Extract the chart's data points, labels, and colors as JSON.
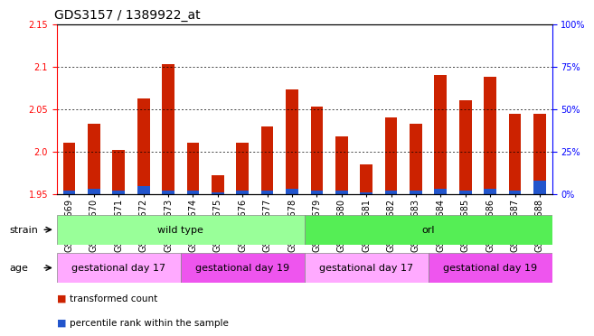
{
  "title": "GDS3157 / 1389922_at",
  "samples": [
    "GSM187669",
    "GSM187670",
    "GSM187671",
    "GSM187672",
    "GSM187673",
    "GSM187674",
    "GSM187675",
    "GSM187676",
    "GSM187677",
    "GSM187678",
    "GSM187679",
    "GSM187680",
    "GSM187681",
    "GSM187682",
    "GSM187683",
    "GSM187684",
    "GSM187685",
    "GSM187686",
    "GSM187687",
    "GSM187688"
  ],
  "red_values": [
    2.01,
    2.033,
    2.002,
    2.063,
    2.103,
    2.01,
    1.972,
    2.01,
    2.03,
    2.073,
    2.053,
    2.018,
    1.985,
    2.04,
    2.033,
    2.09,
    2.06,
    2.088,
    2.044,
    2.044
  ],
  "blue_values": [
    2,
    3,
    2,
    5,
    2,
    2,
    1,
    2,
    2,
    3,
    2,
    2,
    1,
    2,
    2,
    3,
    2,
    3,
    2,
    8
  ],
  "ymin": 1.95,
  "ymax": 2.15,
  "yticks": [
    1.95,
    2.0,
    2.05,
    2.1,
    2.15
  ],
  "right_yticks": [
    0,
    25,
    50,
    75,
    100
  ],
  "right_ylabels": [
    "0%",
    "25%",
    "50%",
    "75%",
    "100%"
  ],
  "bar_color_red": "#CC2200",
  "bar_color_blue": "#2255CC",
  "bar_width": 0.5,
  "baseline": 1.95,
  "blue_scale_max": 100,
  "strain_groups": [
    {
      "label": "wild type",
      "start": 0,
      "end": 10,
      "color": "#99FF99"
    },
    {
      "label": "orl",
      "start": 10,
      "end": 20,
      "color": "#55EE55"
    }
  ],
  "age_groups": [
    {
      "label": "gestational day 17",
      "start": 0,
      "end": 5,
      "color": "#FFAAFF"
    },
    {
      "label": "gestational day 19",
      "start": 5,
      "end": 10,
      "color": "#EE55EE"
    },
    {
      "label": "gestational day 17",
      "start": 10,
      "end": 15,
      "color": "#FFAAFF"
    },
    {
      "label": "gestational day 19",
      "start": 15,
      "end": 20,
      "color": "#EE55EE"
    }
  ],
  "legend_red": "transformed count",
  "legend_blue": "percentile rank within the sample",
  "bg_color": "#FFFFFF",
  "title_fontsize": 10,
  "tick_fontsize": 7,
  "label_fontsize": 8
}
